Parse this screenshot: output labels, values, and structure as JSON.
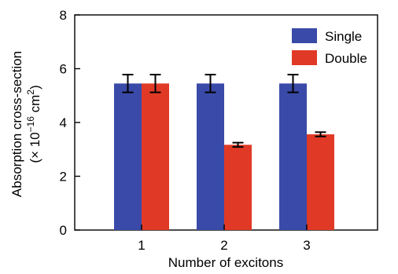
{
  "chart_data": {
    "type": "bar",
    "categories": [
      "1",
      "2",
      "3"
    ],
    "series": [
      {
        "name": "Single",
        "color": "#3a4aa8",
        "values": [
          5.45,
          5.45,
          5.45
        ],
        "errors": [
          0.33,
          0.33,
          0.33
        ]
      },
      {
        "name": "Double",
        "color": "#e03a26",
        "values": [
          5.45,
          3.17,
          3.56
        ],
        "errors": [
          0.33,
          0.08,
          0.08
        ]
      }
    ],
    "xlabel": "Number of excitons",
    "ylabel_line1": "Absorption cross-section",
    "ylabel_line2_prefix": "(× 10",
    "ylabel_exponent": "−16",
    "ylabel_unit": " cm",
    "ylabel_unit_exponent": "2",
    "ylabel_suffix": ")",
    "ylim": [
      0,
      8
    ],
    "yticks": [
      "0",
      "2",
      "4",
      "6",
      "8"
    ],
    "legend_position": "top-right",
    "grid": false
  }
}
